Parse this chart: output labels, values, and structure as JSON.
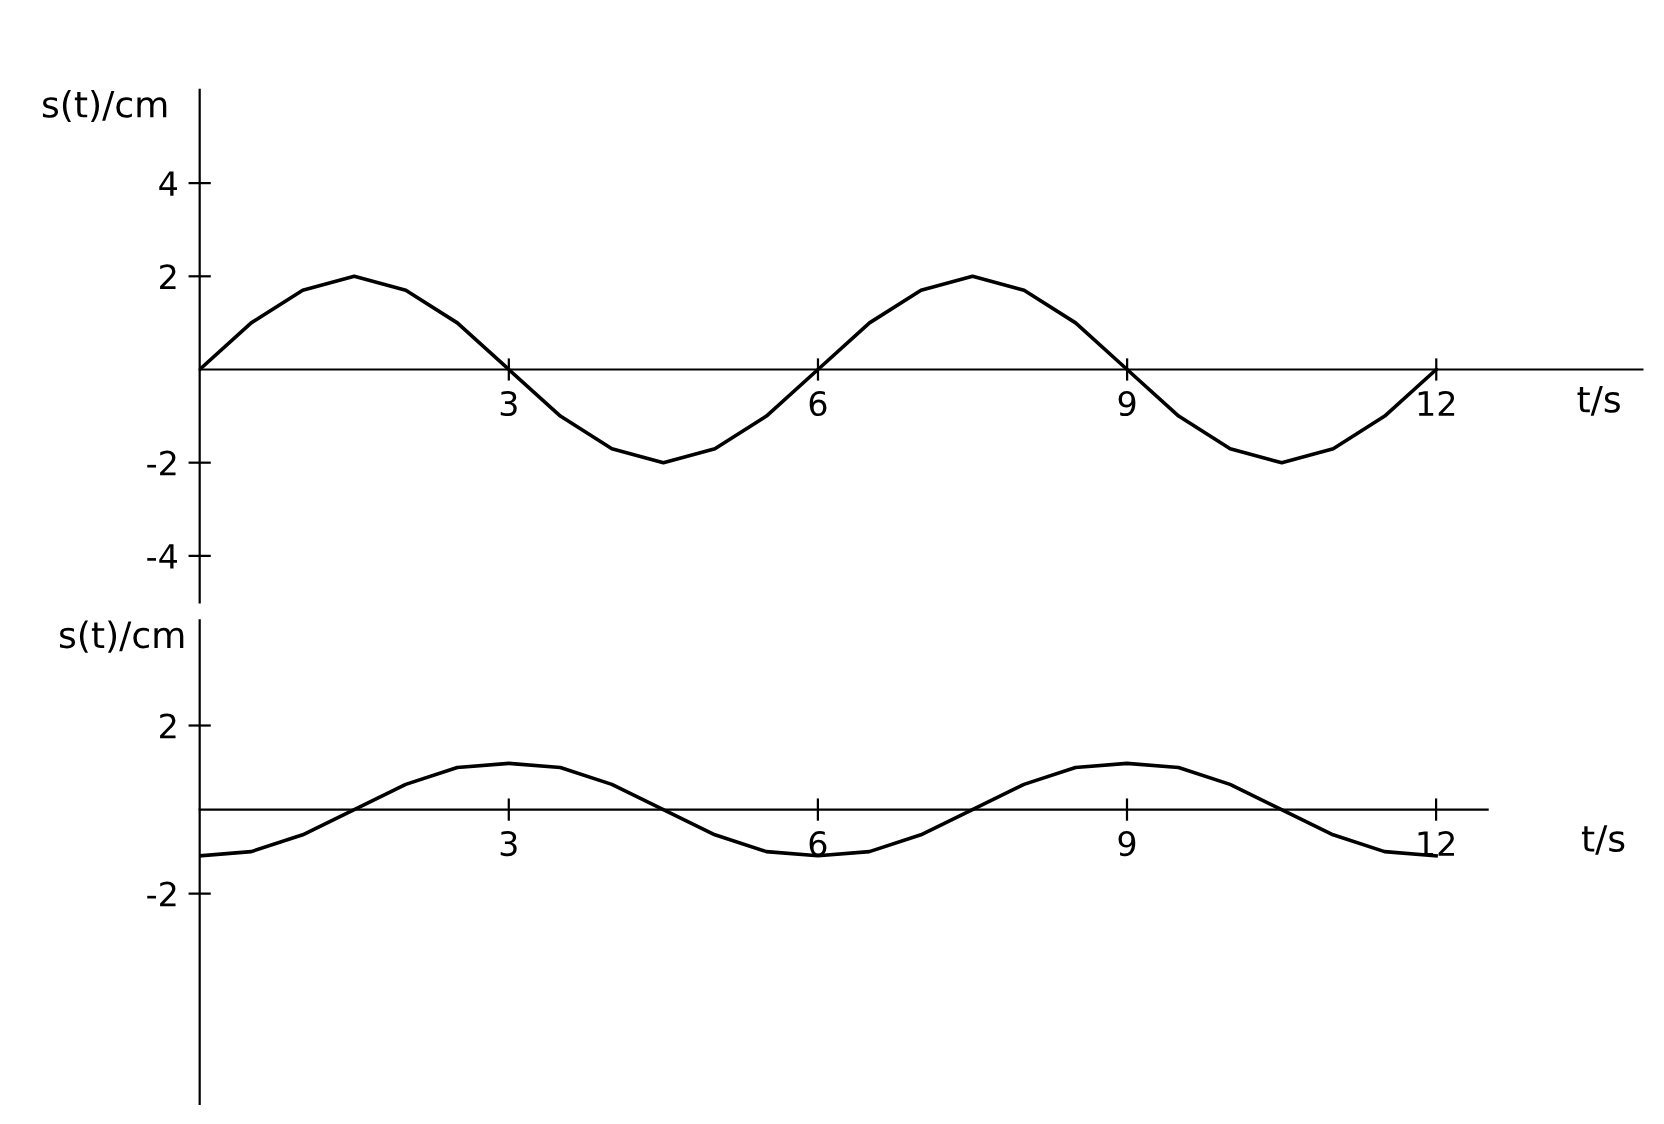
{
  "chart_data": [
    {
      "type": "line",
      "xlabel": "t/s",
      "ylabel": "s(t)/cm",
      "x": [
        0,
        0.5,
        1,
        1.5,
        2,
        2.5,
        3,
        3.5,
        4,
        4.5,
        5,
        5.5,
        6,
        6.5,
        7,
        7.5,
        8,
        8.5,
        9,
        9.5,
        10,
        10.5,
        11,
        11.5,
        12
      ],
      "series": [
        {
          "color": "#000000",
          "values": [
            0,
            1,
            1.7,
            2,
            1.7,
            1,
            0,
            -1,
            -1.7,
            -2,
            -1.7,
            -1,
            0,
            1,
            1.7,
            2,
            1.7,
            1,
            0,
            -1,
            -1.7,
            -2,
            -1.7,
            -1,
            0
          ]
        }
      ],
      "xlim": [
        0,
        14
      ],
      "ylim": [
        -5,
        6
      ],
      "xticks": [
        3,
        6,
        9,
        12
      ],
      "yticks": [
        4,
        2,
        -2,
        -4
      ],
      "grid": false,
      "marker": "none",
      "line_style": "solid"
    },
    {
      "type": "line",
      "xlabel": "t/s",
      "ylabel": "s(t)/cm",
      "x": [
        0,
        0.5,
        1,
        1.5,
        2,
        2.5,
        3,
        3.5,
        4,
        4.5,
        5,
        5.5,
        6,
        6.5,
        7,
        7.5,
        8,
        8.5,
        9,
        9.5,
        10,
        10.5,
        11,
        11.5,
        12
      ],
      "series": [
        {
          "color": "#000000",
          "values": [
            -1.1,
            -1,
            -0.6,
            0,
            0.6,
            1,
            1.1,
            1,
            0.6,
            0,
            -0.6,
            -1,
            -1.1,
            -1,
            -0.6,
            0,
            0.6,
            1,
            1.1,
            1,
            0.6,
            0,
            -0.6,
            -1,
            -1.1
          ]
        }
      ],
      "xlim": [
        0,
        12.5
      ],
      "ylim": [
        -7,
        4.5
      ],
      "xticks": [
        3,
        6,
        9,
        12
      ],
      "yticks": [
        2,
        -2
      ],
      "grid": false,
      "marker": "none",
      "line_style": "solid"
    }
  ]
}
